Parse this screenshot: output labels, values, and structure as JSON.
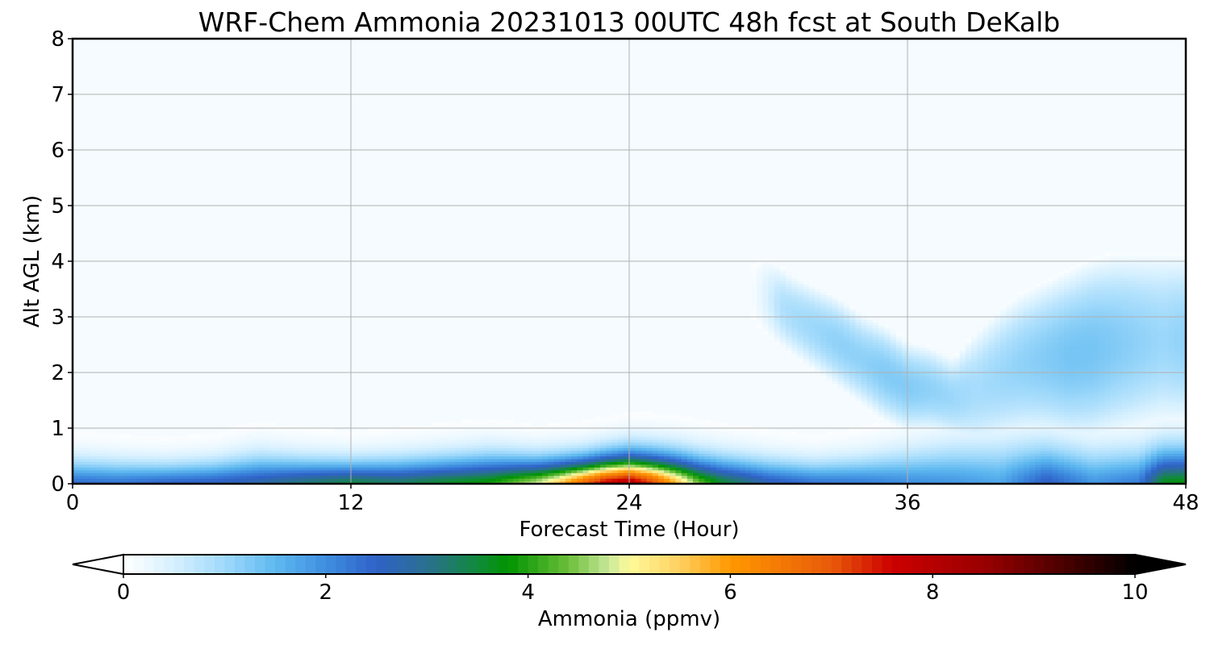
{
  "chart_data": {
    "type": "heatmap",
    "title": "WRF-Chem Ammonia  20231013 00UTC 48h fcst at South DeKalb",
    "xlabel": "Forecast Time (Hour)",
    "ylabel": "Alt AGL (km)",
    "xlim": [
      0,
      48
    ],
    "ylim": [
      0,
      8
    ],
    "x_ticks": [
      "0",
      "12",
      "24",
      "36",
      "48"
    ],
    "y_ticks": [
      "0",
      "1",
      "2",
      "3",
      "4",
      "5",
      "6",
      "7",
      "8"
    ],
    "grid": true,
    "colorbar": {
      "label": "Ammonia  (ppmv)",
      "range": [
        0,
        10
      ],
      "ticks": [
        "0",
        "2",
        "4",
        "6",
        "8",
        "10"
      ],
      "extend": "both",
      "colors": [
        {
          "v": 0.0,
          "c": "#ffffff"
        },
        {
          "v": 0.5,
          "c": "#d6f0ff"
        },
        {
          "v": 1.0,
          "c": "#9fd9fb"
        },
        {
          "v": 1.5,
          "c": "#5fb9f0"
        },
        {
          "v": 2.0,
          "c": "#3f8ee0"
        },
        {
          "v": 2.5,
          "c": "#2f62c8"
        },
        {
          "v": 3.0,
          "c": "#2a6f90"
        },
        {
          "v": 3.5,
          "c": "#118a3c"
        },
        {
          "v": 3.8,
          "c": "#009300"
        },
        {
          "v": 4.4,
          "c": "#6cbf3a"
        },
        {
          "v": 4.8,
          "c": "#c8e89a"
        },
        {
          "v": 5.0,
          "c": "#fffa9a"
        },
        {
          "v": 5.5,
          "c": "#ffd060"
        },
        {
          "v": 6.0,
          "c": "#ff9800"
        },
        {
          "v": 7.0,
          "c": "#e85a0a"
        },
        {
          "v": 7.6,
          "c": "#cc0000"
        },
        {
          "v": 8.5,
          "c": "#9a0000"
        },
        {
          "v": 9.3,
          "c": "#4a0000"
        },
        {
          "v": 10.0,
          "c": "#000000"
        }
      ]
    },
    "surface_value": {
      "x": [
        0,
        2,
        4,
        6,
        8,
        10,
        12,
        14,
        16,
        18,
        20,
        21,
        22,
        23,
        24,
        25,
        26,
        27,
        28,
        30,
        32,
        34,
        36,
        38,
        40,
        42,
        44,
        46,
        47,
        48
      ],
      "v": [
        2.4,
        2.3,
        2.5,
        2.6,
        2.8,
        3.2,
        3.5,
        3.3,
        3.6,
        3.9,
        4.8,
        5.6,
        6.8,
        7.8,
        8.2,
        7.2,
        5.8,
        4.4,
        3.6,
        2.7,
        2.3,
        2.2,
        2.0,
        1.9,
        1.7,
        2.6,
        1.9,
        2.2,
        3.7,
        3.8
      ]
    },
    "plume_depth_km": {
      "x": [
        0,
        2,
        4,
        6,
        8,
        10,
        12,
        14,
        16,
        18,
        20,
        22,
        24,
        26,
        28,
        30,
        32,
        34,
        36,
        38,
        40,
        42,
        44,
        46,
        48
      ],
      "depth": [
        0.75,
        0.7,
        0.65,
        0.7,
        0.85,
        0.75,
        0.7,
        0.75,
        0.8,
        0.85,
        0.75,
        0.75,
        0.85,
        0.85,
        0.8,
        0.75,
        0.7,
        0.8,
        1.0,
        1.2,
        1.3,
        1.2,
        1.1,
        1.1,
        1.1
      ]
    },
    "aloft_plume": {
      "x": [
        29,
        30,
        31,
        32,
        33,
        34,
        35,
        36,
        37,
        38,
        39,
        40,
        41,
        42,
        43,
        44,
        45,
        46,
        47,
        48
      ],
      "bottom_km": [
        3.0,
        2.6,
        2.3,
        2.0,
        1.7,
        1.4,
        1.1,
        0.9,
        0.9,
        0.8,
        0.6,
        0.7,
        0.8,
        0.8,
        0.7,
        0.7,
        0.8,
        0.9,
        1.0,
        1.0
      ],
      "top_km": [
        4.0,
        4.1,
        3.8,
        3.6,
        3.4,
        3.1,
        2.9,
        2.6,
        2.5,
        2.3,
        2.8,
        3.2,
        3.5,
        3.7,
        3.9,
        4.1,
        4.2,
        4.2,
        4.2,
        4.2
      ],
      "peak_value": [
        0.4,
        0.6,
        0.8,
        0.9,
        1.0,
        1.0,
        1.1,
        1.1,
        1.0,
        0.9,
        0.8,
        0.9,
        1.0,
        1.1,
        1.2,
        1.2,
        1.1,
        1.0,
        0.9,
        1.0
      ]
    }
  }
}
